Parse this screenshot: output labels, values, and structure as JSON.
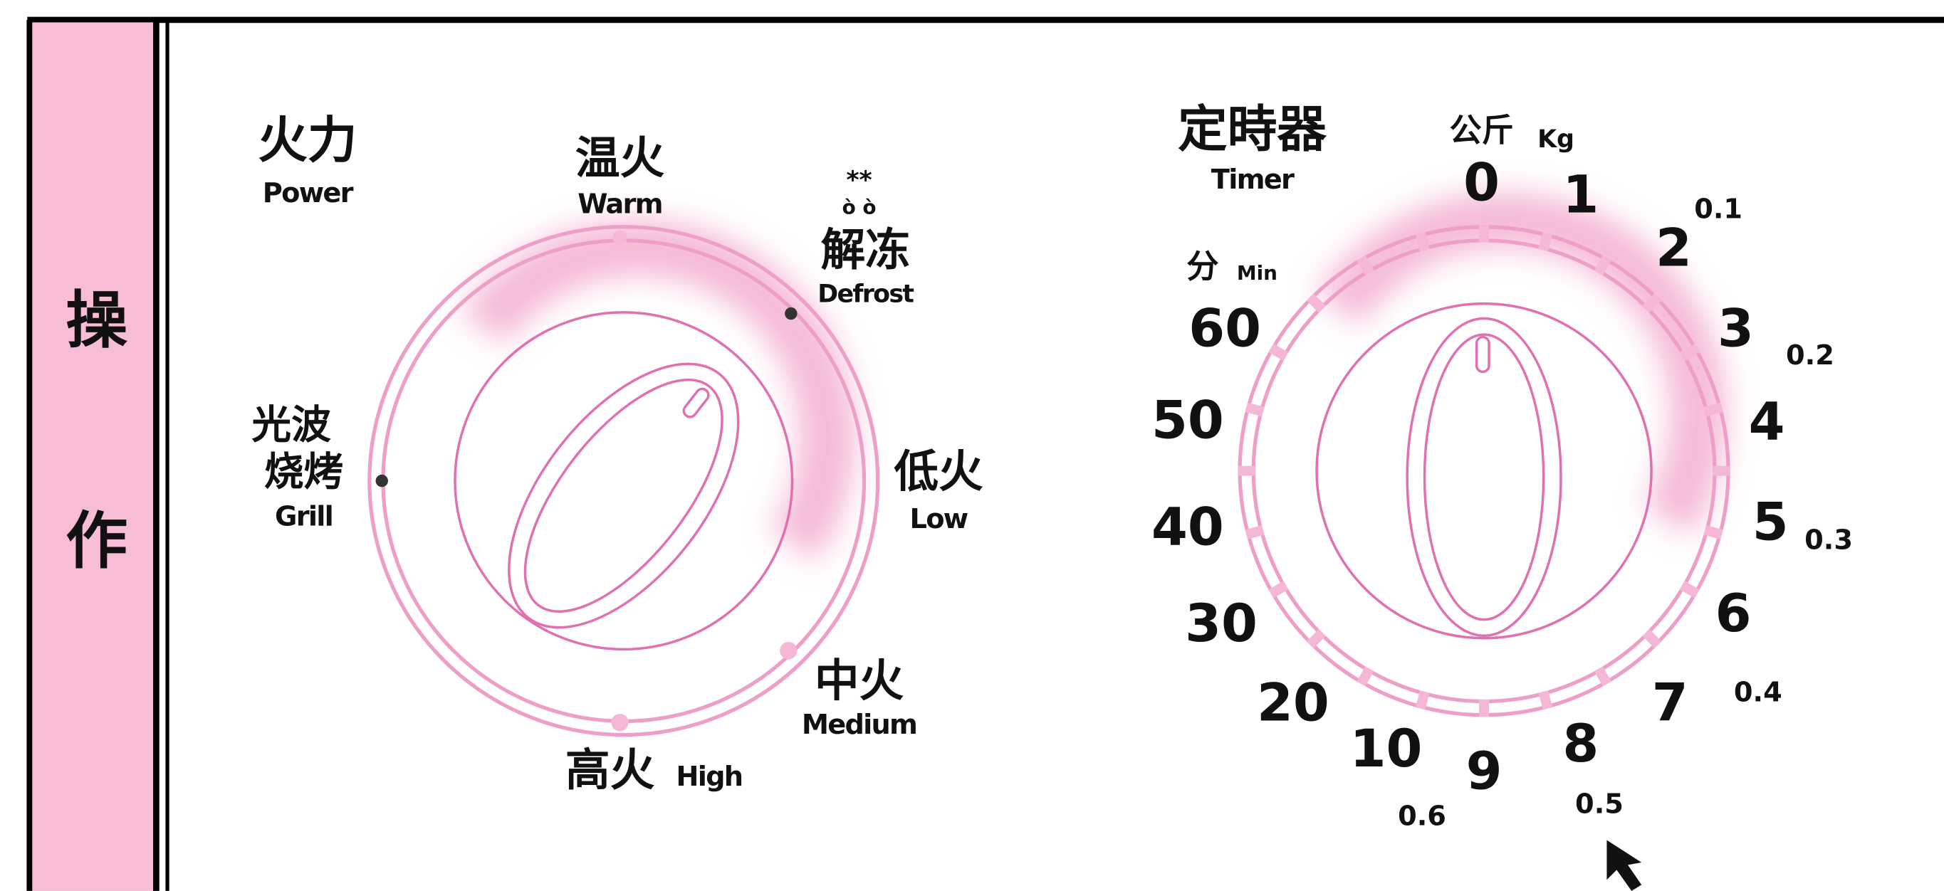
{
  "sidebar": [
    "操",
    "作"
  ],
  "power": {
    "title": "火力",
    "subtitle": "Power",
    "warm": {
      "zh": "温火",
      "en": "Warm"
    },
    "defrost": {
      "icon": "**",
      "zh": "解冻",
      "en": "Defrost"
    },
    "low": {
      "zh": "低火",
      "en": "Low"
    },
    "medium": {
      "zh": "中火",
      "en": "Medium"
    },
    "high": {
      "zh": "高火",
      "en": "High"
    },
    "grill": {
      "zh": [
        "光波",
        "烧烤"
      ],
      "en": "Grill"
    }
  },
  "timer": {
    "title": "定時器",
    "subtitle": "Timer",
    "kg_unit": {
      "zh": "公斤",
      "en": "Kg"
    },
    "min_unit": {
      "zh": "分",
      "en": "Min"
    },
    "minutes": [
      "60",
      "50",
      "40",
      "30",
      "20",
      "10"
    ],
    "digits": [
      "0",
      "1",
      "2",
      "3",
      "4",
      "5",
      "6",
      "7",
      "8",
      "9"
    ],
    "kg": [
      "0.1",
      "0.2",
      "0.3",
      "0.4",
      "0.5",
      "0.6"
    ]
  }
}
